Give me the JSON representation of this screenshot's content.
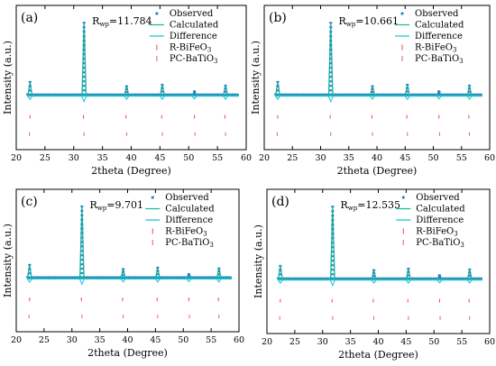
{
  "colors": {
    "observed": "#2E86C1",
    "calculated": "#1ABC9C",
    "difference": "#17C3D6",
    "tick_rbfo": "#E74C3C",
    "tick_pcbto": "#E056A0",
    "frame": "#000000"
  },
  "legend": {
    "observed": "Observed",
    "calculated": "Calculated",
    "difference": "Difference",
    "rbfo": "R-BiFeO3",
    "pcbto": "PC-BaTiO3"
  },
  "chart_data": [
    {
      "type": "line",
      "panel_label": "(a)",
      "rwp_label": "Rwp=11.784",
      "xlabel": "2theta (Degree)",
      "ylabel": "Intensity (a.u.)",
      "xlim": [
        20,
        60
      ],
      "xticks": [
        "20",
        "25",
        "30",
        "35",
        "40",
        "45",
        "50",
        "55",
        "60"
      ],
      "ylim": [
        0,
        1.25
      ],
      "series": [
        {
          "name": "Observed",
          "x": [
            22.4,
            31.8,
            39.2,
            45.4,
            51.0,
            56.4
          ],
          "y": [
            0.18,
            1.0,
            0.12,
            0.14,
            0.05,
            0.13
          ]
        },
        {
          "name": "Calculated",
          "x": [
            22.4,
            31.8,
            39.2,
            45.4,
            51.0,
            56.4
          ],
          "y": [
            0.18,
            1.0,
            0.12,
            0.14,
            0.05,
            0.13
          ]
        }
      ],
      "reflections": {
        "R-BiFeO3": [
          22.4,
          31.7,
          39.1,
          45.3,
          51.0,
          56.3
        ],
        "PC-BaTiO3": [
          22.3,
          31.8,
          39.2,
          45.4,
          51.1,
          56.4
        ]
      },
      "grid": false,
      "legend_position": "top-right"
    },
    {
      "type": "line",
      "panel_label": "(b)",
      "rwp_label": "Rwp=10.661",
      "xlabel": "2theta (Degree)",
      "ylabel": "Intensity (a.u.)",
      "xlim": [
        20,
        60
      ],
      "xticks": [
        "20",
        "25",
        "30",
        "35",
        "40",
        "45",
        "50",
        "55",
        "60"
      ],
      "ylim": [
        0,
        1.25
      ],
      "series": [
        {
          "name": "Observed",
          "x": [
            22.4,
            31.8,
            39.2,
            45.4,
            51.0,
            56.4
          ],
          "y": [
            0.18,
            1.0,
            0.12,
            0.14,
            0.05,
            0.13
          ]
        },
        {
          "name": "Calculated",
          "x": [
            22.4,
            31.8,
            39.2,
            45.4,
            51.0,
            56.4
          ],
          "y": [
            0.18,
            1.0,
            0.12,
            0.14,
            0.05,
            0.13
          ]
        }
      ],
      "reflections": {
        "R-BiFeO3": [
          22.4,
          31.7,
          39.1,
          45.3,
          51.0,
          56.3
        ],
        "PC-BaTiO3": [
          22.3,
          31.8,
          39.2,
          45.4,
          51.1,
          56.4
        ]
      },
      "grid": false,
      "legend_position": "top-right"
    },
    {
      "type": "line",
      "panel_label": "(c)",
      "rwp_label": "Rwp=9.701",
      "xlabel": "2theta (Degree)",
      "ylabel": "Intensity (a.u.)",
      "xlim": [
        20,
        60
      ],
      "xticks": [
        "20",
        "25",
        "30",
        "35",
        "40",
        "45",
        "50",
        "55",
        "60"
      ],
      "ylim": [
        0,
        1.25
      ],
      "series": [
        {
          "name": "Observed",
          "x": [
            22.4,
            31.8,
            39.2,
            45.4,
            51.0,
            56.4
          ],
          "y": [
            0.18,
            1.0,
            0.12,
            0.14,
            0.05,
            0.13
          ]
        },
        {
          "name": "Calculated",
          "x": [
            22.4,
            31.8,
            39.2,
            45.4,
            51.0,
            56.4
          ],
          "y": [
            0.18,
            1.0,
            0.12,
            0.14,
            0.05,
            0.13
          ]
        }
      ],
      "reflections": {
        "R-BiFeO3": [
          22.4,
          31.7,
          39.1,
          45.3,
          51.0,
          56.3
        ],
        "PC-BaTiO3": [
          22.3,
          31.8,
          39.2,
          45.4,
          51.1,
          56.4
        ]
      },
      "grid": false,
      "legend_position": "top-right"
    },
    {
      "type": "line",
      "panel_label": "(d)",
      "rwp_label": "Rwp=12.535",
      "xlabel": "2theta (Degree)",
      "ylabel": "Intensity (a.u.)",
      "xlim": [
        20,
        60
      ],
      "xticks": [
        "20",
        "25",
        "30",
        "35",
        "40",
        "45",
        "50",
        "55",
        "60"
      ],
      "ylim": [
        0,
        1.25
      ],
      "series": [
        {
          "name": "Observed",
          "x": [
            22.4,
            31.8,
            39.2,
            45.4,
            51.0,
            56.4
          ],
          "y": [
            0.18,
            1.0,
            0.12,
            0.14,
            0.05,
            0.13
          ]
        },
        {
          "name": "Calculated",
          "x": [
            22.4,
            31.8,
            39.2,
            45.4,
            51.0,
            56.4
          ],
          "y": [
            0.18,
            1.0,
            0.12,
            0.14,
            0.05,
            0.13
          ]
        }
      ],
      "reflections": {
        "R-BiFeO3": [
          22.4,
          31.7,
          39.1,
          45.3,
          51.0,
          56.3
        ],
        "PC-BaTiO3": [
          22.3,
          31.8,
          39.2,
          45.4,
          51.1,
          56.4
        ]
      },
      "grid": false,
      "legend_position": "top-right"
    }
  ]
}
